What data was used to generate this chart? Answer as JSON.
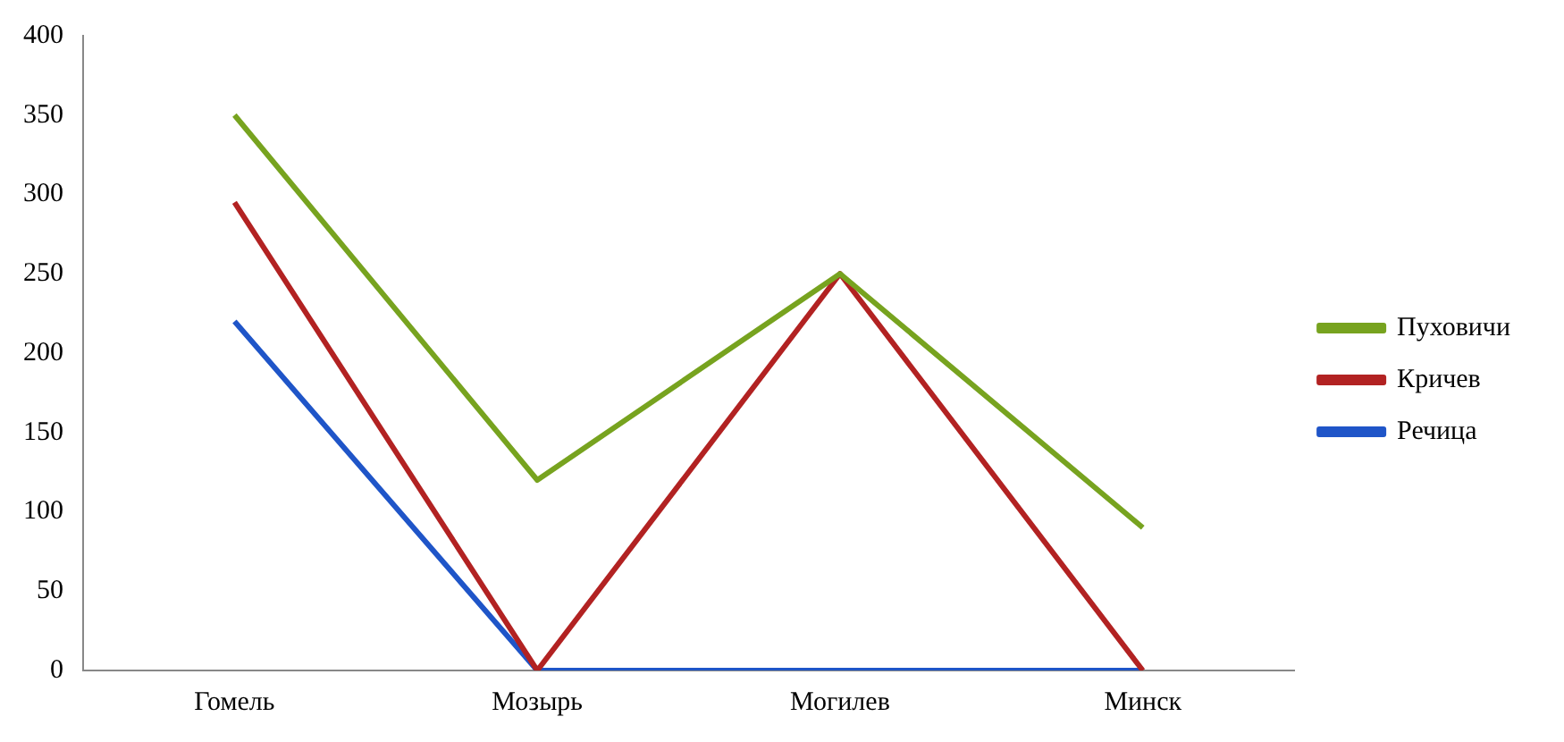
{
  "chart_data": {
    "type": "line",
    "categories": [
      "Гомель",
      "Мозырь",
      "Могилев",
      "Минск"
    ],
    "series": [
      {
        "name": "Пуховичи",
        "color": "#77a31f",
        "values": [
          350,
          120,
          250,
          90
        ]
      },
      {
        "name": "Кричев",
        "color": "#b22222",
        "values": [
          295,
          0,
          250,
          0
        ]
      },
      {
        "name": "Речица",
        "color": "#1f55c8",
        "values": [
          220,
          0,
          0,
          0
        ]
      }
    ],
    "ylim": [
      0,
      400
    ],
    "yticks": [
      0,
      50,
      100,
      150,
      200,
      250,
      300,
      350,
      400
    ],
    "grid": false,
    "legend": "right",
    "marker": "none",
    "line_style": "solid"
  }
}
